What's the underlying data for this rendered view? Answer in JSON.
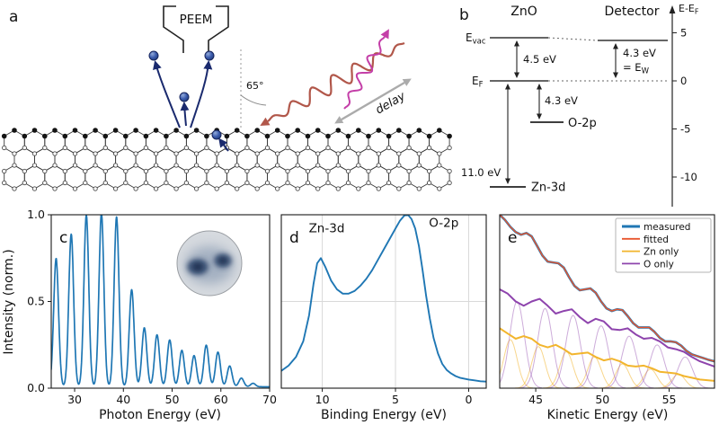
{
  "panels": {
    "a": "a",
    "b": "b",
    "c": "c",
    "d": "d",
    "e": "e"
  },
  "schematic_a": {
    "peem": "PEEM",
    "angle": "65°",
    "delay": "delay"
  },
  "energy_diagram_b": {
    "material": "ZnO",
    "detector": "Detector",
    "evac_main": "E",
    "evac_sub": "vac",
    "ef_main": "E",
    "ef_sub": "F",
    "zno_workfunction": "4.5 eV",
    "detector_workfunction": "4.3 eV",
    "detector_workfunction_eq": "= E",
    "detector_workfunction_eq_sub": "W",
    "o2p_gap": "4.3 eV",
    "o2p_label": "O-2p",
    "zn3d_gap": "11.0 eV",
    "zn3d_label": "Zn-3d",
    "axis_label_main": "E-E",
    "axis_label_sub": "F",
    "axis_ticks": [
      "5",
      "0",
      "-5",
      "-10"
    ]
  },
  "shared_ylabel": "Intensity (norm.)",
  "chart_data": [
    {
      "id": "c",
      "type": "line",
      "xlabel": "Photon Energy (eV)",
      "ylabel": "Intensity (norm.)",
      "xlim": [
        25.2,
        70
      ],
      "ylim": [
        0,
        1
      ],
      "xticks": [
        30,
        40,
        50,
        60,
        70
      ],
      "ytick_values": [
        0,
        0.5,
        1
      ],
      "ytick_labels": [
        "0.0",
        "0.5",
        "1.0"
      ],
      "series": [
        {
          "name": "harmonic-spectrum",
          "color": "#1f77b4",
          "width": 1.7,
          "sigma": 0.5,
          "baseline": 0.008,
          "peaks": [
            [
              26.2,
              0.74
            ],
            [
              29.3,
              0.88
            ],
            [
              32.4,
              0.99
            ],
            [
              35.5,
              1.0
            ],
            [
              38.6,
              0.98
            ],
            [
              41.7,
              0.56
            ],
            [
              44.3,
              0.34
            ],
            [
              46.9,
              0.3
            ],
            [
              49.5,
              0.27
            ],
            [
              52.0,
              0.21
            ],
            [
              54.5,
              0.18
            ],
            [
              57.0,
              0.24
            ],
            [
              59.4,
              0.2
            ],
            [
              61.8,
              0.12
            ],
            [
              64.2,
              0.05
            ],
            [
              66.6,
              0.02
            ]
          ]
        }
      ]
    },
    {
      "id": "d",
      "type": "line",
      "xlabel": "Binding Energy (eV)",
      "xlim": [
        12.8,
        -1.2
      ],
      "ylim": [
        0,
        1
      ],
      "xticks": [
        10,
        5,
        0
      ],
      "grid_x": [
        10,
        5,
        0
      ],
      "grid_y": [
        0.5
      ],
      "series": [
        {
          "name": "xuv-photoemission",
          "color": "#1f77b4",
          "width": 1.9,
          "points": [
            [
              12.8,
              0.1
            ],
            [
              12.3,
              0.13
            ],
            [
              11.8,
              0.18
            ],
            [
              11.3,
              0.27
            ],
            [
              10.9,
              0.42
            ],
            [
              10.6,
              0.6
            ],
            [
              10.35,
              0.72
            ],
            [
              10.1,
              0.75
            ],
            [
              9.8,
              0.7
            ],
            [
              9.4,
              0.62
            ],
            [
              9.0,
              0.57
            ],
            [
              8.6,
              0.545
            ],
            [
              8.2,
              0.545
            ],
            [
              7.8,
              0.56
            ],
            [
              7.4,
              0.59
            ],
            [
              7.0,
              0.63
            ],
            [
              6.6,
              0.68
            ],
            [
              6.2,
              0.74
            ],
            [
              5.8,
              0.8
            ],
            [
              5.4,
              0.86
            ],
            [
              5.0,
              0.92
            ],
            [
              4.7,
              0.965
            ],
            [
              4.4,
              0.995
            ],
            [
              4.15,
              1.0
            ],
            [
              3.9,
              0.975
            ],
            [
              3.65,
              0.92
            ],
            [
              3.4,
              0.82
            ],
            [
              3.15,
              0.68
            ],
            [
              2.9,
              0.53
            ],
            [
              2.65,
              0.4
            ],
            [
              2.4,
              0.29
            ],
            [
              2.1,
              0.2
            ],
            [
              1.8,
              0.14
            ],
            [
              1.5,
              0.105
            ],
            [
              1.2,
              0.085
            ],
            [
              0.9,
              0.07
            ],
            [
              0.6,
              0.06
            ],
            [
              0.3,
              0.055
            ],
            [
              0.0,
              0.05
            ],
            [
              -0.4,
              0.045
            ],
            [
              -0.8,
              0.04
            ],
            [
              -1.2,
              0.038
            ]
          ]
        }
      ],
      "annotations": [
        {
          "text": "Zn-3d",
          "x": 9.7,
          "y": 0.9,
          "color": "#e5a33c"
        },
        {
          "text": "O-2p",
          "x": 1.7,
          "y": 0.93,
          "color": "#8e44ad"
        }
      ]
    },
    {
      "id": "e",
      "type": "line",
      "xlabel": "Kinetic Energy (eV)",
      "xlim": [
        42.3,
        58.4
      ],
      "ylim": [
        0,
        1
      ],
      "xticks": [
        45,
        50,
        55
      ],
      "series": [
        {
          "name": "zn-components",
          "style": "gaussians",
          "color": "#f2b52d",
          "opacity": 0.55,
          "width": 1,
          "sigma": 0.5,
          "peaks": [
            [
              43.1,
              0.28
            ],
            [
              45.2,
              0.24
            ],
            [
              47.3,
              0.21
            ],
            [
              49.4,
              0.18
            ],
            [
              51.5,
              0.14
            ],
            [
              53.6,
              0.11
            ],
            [
              55.7,
              0.08
            ]
          ]
        },
        {
          "name": "o-components",
          "style": "gaussians",
          "color": "#9b59b6",
          "opacity": 0.5,
          "width": 1,
          "sigma": 0.55,
          "peaks": [
            [
              43.6,
              0.5
            ],
            [
              45.7,
              0.46
            ],
            [
              47.8,
              0.42
            ],
            [
              49.9,
              0.36
            ],
            [
              52.0,
              0.3
            ],
            [
              54.1,
              0.25
            ],
            [
              56.2,
              0.18
            ]
          ]
        },
        {
          "name": "zn-only",
          "color": "#f2b52d",
          "width": 2,
          "points": [
            [
              42.3,
              0.345
            ],
            [
              42.9,
              0.315
            ],
            [
              43.5,
              0.285
            ],
            [
              44.1,
              0.3
            ],
            [
              44.7,
              0.285
            ],
            [
              45.3,
              0.25
            ],
            [
              45.9,
              0.235
            ],
            [
              46.5,
              0.25
            ],
            [
              47.1,
              0.225
            ],
            [
              47.7,
              0.195
            ],
            [
              48.3,
              0.2
            ],
            [
              48.9,
              0.205
            ],
            [
              49.5,
              0.18
            ],
            [
              50.1,
              0.16
            ],
            [
              50.7,
              0.17
            ],
            [
              51.3,
              0.155
            ],
            [
              51.9,
              0.13
            ],
            [
              52.5,
              0.125
            ],
            [
              53.1,
              0.13
            ],
            [
              53.7,
              0.115
            ],
            [
              54.3,
              0.095
            ],
            [
              54.9,
              0.09
            ],
            [
              55.5,
              0.085
            ],
            [
              56.1,
              0.07
            ],
            [
              56.7,
              0.06
            ],
            [
              57.3,
              0.05
            ],
            [
              58.4,
              0.042
            ]
          ]
        },
        {
          "name": "o-only",
          "color": "#8e44ad",
          "width": 2,
          "points": [
            [
              42.3,
              0.57
            ],
            [
              42.9,
              0.545
            ],
            [
              43.5,
              0.5
            ],
            [
              44.1,
              0.475
            ],
            [
              44.7,
              0.5
            ],
            [
              45.3,
              0.515
            ],
            [
              45.9,
              0.475
            ],
            [
              46.5,
              0.43
            ],
            [
              47.1,
              0.445
            ],
            [
              47.7,
              0.455
            ],
            [
              48.3,
              0.41
            ],
            [
              48.9,
              0.375
            ],
            [
              49.5,
              0.4
            ],
            [
              50.1,
              0.385
            ],
            [
              50.7,
              0.34
            ],
            [
              51.3,
              0.335
            ],
            [
              51.9,
              0.345
            ],
            [
              52.5,
              0.31
            ],
            [
              53.1,
              0.285
            ],
            [
              53.7,
              0.29
            ],
            [
              54.3,
              0.27
            ],
            [
              54.9,
              0.235
            ],
            [
              55.5,
              0.225
            ],
            [
              56.1,
              0.21
            ],
            [
              56.7,
              0.18
            ],
            [
              57.3,
              0.155
            ],
            [
              58.4,
              0.125
            ]
          ]
        },
        {
          "name": "measured",
          "color": "#1f77b4",
          "width": 2.6,
          "points": [
            [
              42.3,
              1.0
            ],
            [
              42.7,
              0.97
            ],
            [
              43.1,
              0.93
            ],
            [
              43.5,
              0.9
            ],
            [
              43.9,
              0.885
            ],
            [
              44.3,
              0.895
            ],
            [
              44.7,
              0.875
            ],
            [
              45.1,
              0.82
            ],
            [
              45.5,
              0.765
            ],
            [
              45.9,
              0.73
            ],
            [
              46.3,
              0.725
            ],
            [
              46.7,
              0.72
            ],
            [
              47.1,
              0.695
            ],
            [
              47.5,
              0.64
            ],
            [
              47.9,
              0.59
            ],
            [
              48.3,
              0.565
            ],
            [
              48.7,
              0.57
            ],
            [
              49.1,
              0.575
            ],
            [
              49.5,
              0.55
            ],
            [
              49.9,
              0.5
            ],
            [
              50.3,
              0.46
            ],
            [
              50.7,
              0.445
            ],
            [
              51.1,
              0.455
            ],
            [
              51.5,
              0.45
            ],
            [
              51.9,
              0.415
            ],
            [
              52.3,
              0.375
            ],
            [
              52.7,
              0.35
            ],
            [
              53.1,
              0.35
            ],
            [
              53.5,
              0.35
            ],
            [
              53.9,
              0.325
            ],
            [
              54.3,
              0.29
            ],
            [
              54.7,
              0.27
            ],
            [
              55.1,
              0.27
            ],
            [
              55.5,
              0.265
            ],
            [
              55.9,
              0.245
            ],
            [
              56.3,
              0.215
            ],
            [
              56.7,
              0.195
            ],
            [
              57.1,
              0.185
            ],
            [
              57.5,
              0.175
            ],
            [
              57.9,
              0.165
            ],
            [
              58.4,
              0.155
            ]
          ]
        },
        {
          "name": "fitted",
          "color": "#e8552d",
          "width": 1.4,
          "points": [
            [
              42.3,
              1.0
            ],
            [
              42.7,
              0.97
            ],
            [
              43.1,
              0.93
            ],
            [
              43.5,
              0.9
            ],
            [
              43.9,
              0.885
            ],
            [
              44.3,
              0.895
            ],
            [
              44.7,
              0.875
            ],
            [
              45.1,
              0.82
            ],
            [
              45.5,
              0.765
            ],
            [
              45.9,
              0.73
            ],
            [
              46.3,
              0.725
            ],
            [
              46.7,
              0.72
            ],
            [
              47.1,
              0.695
            ],
            [
              47.5,
              0.64
            ],
            [
              47.9,
              0.59
            ],
            [
              48.3,
              0.565
            ],
            [
              48.7,
              0.57
            ],
            [
              49.1,
              0.575
            ],
            [
              49.5,
              0.55
            ],
            [
              49.9,
              0.5
            ],
            [
              50.3,
              0.46
            ],
            [
              50.7,
              0.445
            ],
            [
              51.1,
              0.455
            ],
            [
              51.5,
              0.45
            ],
            [
              51.9,
              0.415
            ],
            [
              52.3,
              0.375
            ],
            [
              52.7,
              0.35
            ],
            [
              53.1,
              0.35
            ],
            [
              53.5,
              0.35
            ],
            [
              53.9,
              0.325
            ],
            [
              54.3,
              0.29
            ],
            [
              54.7,
              0.27
            ],
            [
              55.1,
              0.27
            ],
            [
              55.5,
              0.265
            ],
            [
              55.9,
              0.245
            ],
            [
              56.3,
              0.215
            ],
            [
              56.7,
              0.195
            ],
            [
              57.1,
              0.185
            ],
            [
              57.5,
              0.175
            ],
            [
              57.9,
              0.165
            ],
            [
              58.4,
              0.155
            ]
          ]
        }
      ],
      "legend": [
        {
          "label": "measured",
          "color": "#1f77b4",
          "width": 3
        },
        {
          "label": "fitted",
          "color": "#e8552d",
          "width": 1.8
        },
        {
          "label": "Zn only",
          "color": "#f2b52d",
          "width": 1.8
        },
        {
          "label": "O only",
          "color": "#8e44ad",
          "width": 1.8
        }
      ]
    }
  ]
}
